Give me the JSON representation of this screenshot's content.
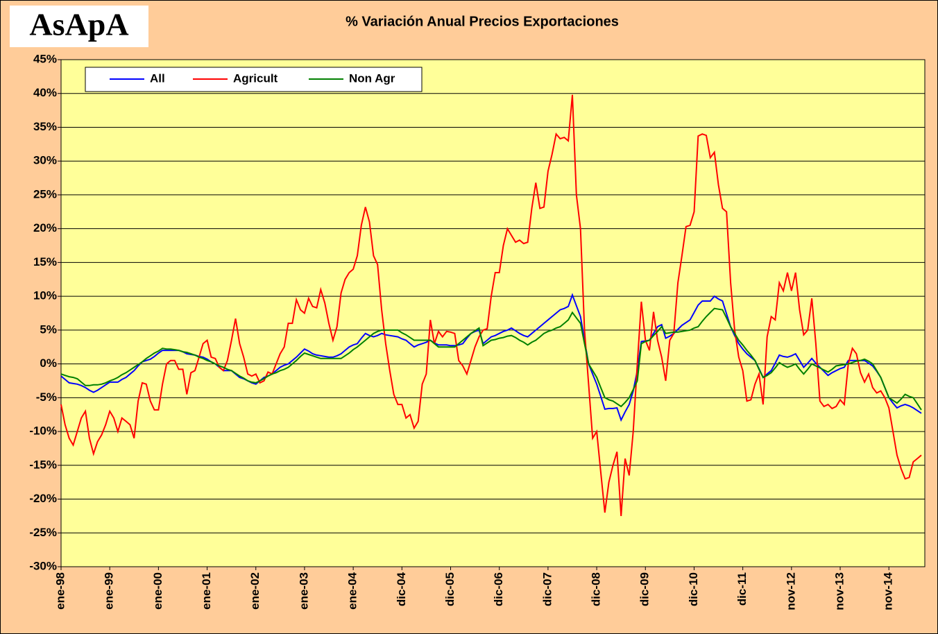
{
  "logo": "AsApA",
  "chart_data": {
    "type": "line",
    "title": "% Variación Anual Precios Exportaciones",
    "legend": "upper left",
    "grid": true,
    "ylim": [
      -30,
      45
    ],
    "yticks": [
      {
        "value": -30,
        "label": "-30%"
      },
      {
        "value": -25,
        "label": "-25%"
      },
      {
        "value": -20,
        "label": "-20%"
      },
      {
        "value": -15,
        "label": "-15%"
      },
      {
        "value": -10,
        "label": "-10%"
      },
      {
        "value": -5,
        "label": "-5%"
      },
      {
        "value": 0,
        "label": "0%"
      },
      {
        "value": 5,
        "label": "5%"
      },
      {
        "value": 10,
        "label": "10%"
      },
      {
        "value": 15,
        "label": "15%"
      },
      {
        "value": 20,
        "label": "20%"
      },
      {
        "value": 25,
        "label": "25%"
      },
      {
        "value": 30,
        "label": "30%"
      },
      {
        "value": 35,
        "label": "35%"
      },
      {
        "value": 40,
        "label": "40%"
      },
      {
        "value": 45,
        "label": "45%"
      }
    ],
    "categories": [
      "ene-98",
      null,
      null,
      null,
      null,
      null,
      null,
      null,
      null,
      null,
      null,
      null,
      "ene-99",
      null,
      null,
      null,
      null,
      null,
      null,
      null,
      null,
      null,
      null,
      null,
      "ene-00",
      null,
      null,
      null,
      null,
      null,
      null,
      null,
      null,
      null,
      null,
      null,
      "ene-01",
      null,
      null,
      null,
      null,
      null,
      null,
      null,
      null,
      null,
      null,
      null,
      "ene-02",
      null,
      null,
      null,
      null,
      null,
      null,
      null,
      null,
      null,
      null,
      null,
      "ene-03",
      null,
      null,
      null,
      null,
      null,
      null,
      null,
      null,
      null,
      null,
      null,
      "ene-04",
      null,
      null,
      null,
      null,
      null,
      null,
      null,
      null,
      null,
      null,
      null,
      "dic-04",
      null,
      null,
      null,
      null,
      null,
      null,
      null,
      null,
      null,
      null,
      null,
      "dic-05",
      null,
      null,
      null,
      null,
      null,
      null,
      null,
      null,
      null,
      null,
      null,
      "dic-06",
      null,
      null,
      null,
      null,
      null,
      null,
      null,
      null,
      null,
      null,
      null,
      "dic-07",
      null,
      null,
      null,
      null,
      null,
      null,
      null,
      null,
      null,
      null,
      null,
      "dic-08",
      null,
      null,
      null,
      null,
      null,
      null,
      null,
      null,
      null,
      null,
      null,
      "dic-09",
      null,
      null,
      null,
      null,
      null,
      null,
      null,
      null,
      null,
      null,
      null,
      "dic-10",
      null,
      null,
      null,
      null,
      null,
      null,
      null,
      null,
      null,
      null,
      null,
      "dic-11",
      null,
      null,
      null,
      null,
      null,
      null,
      null,
      null,
      null,
      null,
      null,
      "nov-12",
      null,
      null,
      null,
      null,
      null,
      null,
      null,
      null,
      null,
      null,
      null,
      "nov-13",
      null,
      null,
      null,
      null,
      null,
      null,
      null,
      null,
      null,
      null,
      null,
      "nov-14",
      null,
      null,
      null,
      null,
      null,
      null,
      null,
      null
    ],
    "series": [
      {
        "name": "All",
        "color": "#0000ff",
        "values": [
          -1.8,
          -2.3,
          -2.8,
          -2.9,
          -3,
          -3.2,
          -3.5,
          -3.9,
          -4.2,
          -3.9,
          -3.5,
          -3.1,
          -2.7,
          -2.7,
          -2.7,
          -2.3,
          -2,
          -1.5,
          -1,
          -0.3,
          0.3,
          0.5,
          0.7,
          1.1,
          1.6,
          2,
          2,
          2,
          2,
          2,
          1.8,
          1.5,
          1.4,
          1.3,
          1.1,
          1,
          0.7,
          0.3,
          0,
          -0.5,
          -1,
          -1,
          -1,
          -1.5,
          -2,
          -2.2,
          -2.5,
          -2.8,
          -3,
          -2.5,
          -2,
          -1.8,
          -1.5,
          -1,
          -0.5,
          -0.2,
          0,
          0.5,
          1,
          1.6,
          2.2,
          1.9,
          1.5,
          1.3,
          1.2,
          1.1,
          1,
          1,
          1.2,
          1.5,
          2,
          2.5,
          2.8,
          3,
          3.8,
          4.5,
          4.2,
          4,
          4.2,
          4.5,
          4.3,
          4.2,
          4.1,
          4,
          3.7,
          3.5,
          3,
          2.5,
          2.8,
          3,
          3.2,
          3.5,
          3.1,
          2.8,
          2.8,
          2.8,
          2.7,
          2.7,
          2.8,
          3,
          3.8,
          4.5,
          4.8,
          5,
          3,
          3.5,
          4,
          4.2,
          4.5,
          4.8,
          5,
          5.3,
          4.9,
          4.5,
          4.2,
          4,
          4.5,
          5,
          5.5,
          6,
          6.5,
          7,
          7.5,
          8,
          8.2,
          8.5,
          10.2,
          8.6,
          7,
          3.5,
          0,
          -1.5,
          -3,
          -4.8,
          -6.7,
          -6.6,
          -6.6,
          -6.5,
          -8.3,
          -7.1,
          -6,
          -4,
          -1,
          3.3,
          3.4,
          3.5,
          4.5,
          5.5,
          5.8,
          3.8,
          4.1,
          4.5,
          5.1,
          5.7,
          6.1,
          6.5,
          7.6,
          8.7,
          9.3,
          9.3,
          9.3,
          10,
          9.6,
          9.3,
          7.4,
          5.5,
          4.2,
          3,
          2.2,
          1.5,
          1,
          0.5,
          -0.7,
          -2,
          -1.5,
          -1,
          0.1,
          1.3,
          1.1,
          1,
          1.2,
          1.5,
          0.5,
          -0.5,
          0.1,
          0.8,
          0.1,
          -0.5,
          -1.1,
          -1.7,
          -1.3,
          -1,
          -0.7,
          -0.5,
          0.5,
          0.5,
          0.5,
          0.5,
          0.5,
          0.1,
          -0.3,
          -1.1,
          -2,
          -3.5,
          -5,
          -5.8,
          -6.5,
          -6.2,
          -6,
          -6.2,
          -6.5,
          -6.9,
          -7.3
        ]
      },
      {
        "name": "Agricult",
        "color": "#ff0000",
        "values": [
          -6,
          -9,
          -11,
          -12,
          -10,
          -8,
          -7,
          -11,
          -13.3,
          -11.5,
          -10.5,
          -9,
          -7,
          -8,
          -10,
          -8,
          -8.5,
          -9,
          -11,
          -5.5,
          -2.8,
          -3,
          -5.5,
          -6.8,
          -6.8,
          -3,
          0,
          0.5,
          0.5,
          -0.8,
          -0.8,
          -4.5,
          -1.3,
          -1,
          1,
          3,
          3.5,
          1,
          0.8,
          -0.5,
          -1,
          0.5,
          3.5,
          6.7,
          3,
          1,
          -1.5,
          -1.8,
          -1.5,
          -2.8,
          -2.5,
          -1.2,
          -1.5,
          0,
          1.5,
          2.5,
          6,
          6,
          9.5,
          8,
          7.5,
          9.7,
          8.5,
          8.3,
          11,
          9,
          6,
          3.5,
          5.5,
          10.5,
          12.5,
          13.5,
          14,
          16,
          20.5,
          23.2,
          21,
          16,
          14.7,
          8,
          3,
          -1,
          -4.5,
          -6,
          -6,
          -8,
          -7.5,
          -9.5,
          -8.5,
          -3,
          -1.5,
          6.5,
          3,
          4.8,
          4,
          4.8,
          4.7,
          4.5,
          0.5,
          -0.3,
          -1.5,
          0.5,
          2.5,
          4,
          5,
          5.2,
          10,
          13.5,
          13.5,
          17.5,
          20,
          19,
          18,
          18.3,
          17.8,
          18,
          23,
          26.8,
          23,
          23.2,
          28.5,
          31,
          34,
          33.3,
          33.5,
          33,
          39.8,
          25,
          20,
          5,
          -3,
          -11,
          -10,
          -16,
          -22,
          -17.5,
          -15,
          -13,
          -22.5,
          -14,
          -16.5,
          -10,
          0,
          9.2,
          3.5,
          2,
          7.7,
          3.5,
          1,
          -2.5,
          3.5,
          4.5,
          12,
          16,
          20.3,
          20.5,
          22.5,
          33.7,
          34,
          33.8,
          30.5,
          31.3,
          26.5,
          23,
          22.5,
          12,
          5,
          1,
          -1,
          -5.5,
          -5.3,
          -3,
          -1.5,
          -6,
          4,
          7,
          6.5,
          12,
          10.8,
          13.5,
          10.8,
          13.5,
          8,
          4.3,
          5,
          9.7,
          3,
          -5.5,
          -6.3,
          -6,
          -6.6,
          -6.3,
          -5.3,
          -6,
          0,
          2.3,
          1.5,
          -1.3,
          -2.7,
          -1.5,
          -3.5,
          -4.3,
          -4,
          -5,
          -6.5,
          -10,
          -13.5,
          -15.5,
          -17,
          -16.8,
          -14.5,
          -14,
          -13.5
        ]
      },
      {
        "name": "Non Agr",
        "color": "#008000",
        "values": [
          -1.5,
          -1.7,
          -1.9,
          -2,
          -2.2,
          -2.7,
          -3.2,
          -3.2,
          -3.1,
          -3.1,
          -3,
          -2.8,
          -2.5,
          -2.3,
          -2,
          -1.6,
          -1.3,
          -0.9,
          -0.5,
          -0.1,
          0.3,
          0.8,
          1.2,
          1.6,
          1.9,
          2.3,
          2.2,
          2.2,
          2.1,
          2,
          1.8,
          1.7,
          1.5,
          1.3,
          1,
          0.8,
          0.5,
          0.3,
          0,
          -0.3,
          -0.5,
          -0.8,
          -1,
          -1.4,
          -1.8,
          -2.1,
          -2.5,
          -2.7,
          -2.8,
          -2.5,
          -2.2,
          -1.8,
          -1.5,
          -1.3,
          -1,
          -0.8,
          -0.5,
          0,
          0.5,
          1.1,
          1.6,
          1.4,
          1.2,
          1,
          0.8,
          0.8,
          0.8,
          0.8,
          0.8,
          0.8,
          1.2,
          1.6,
          2.1,
          2.5,
          3,
          3.5,
          4,
          4.5,
          4.8,
          5,
          5,
          5,
          5,
          5,
          4.6,
          4.3,
          3.9,
          3.5,
          3.5,
          3.5,
          3.5,
          3.5,
          3,
          2.5,
          2.5,
          2.5,
          2.5,
          2.5,
          3,
          3.5,
          4,
          4.5,
          4.9,
          5.3,
          2.7,
          3.1,
          3.5,
          3.6,
          3.8,
          3.9,
          4.1,
          4.2,
          3.9,
          3.5,
          3.2,
          2.8,
          3.2,
          3.5,
          4,
          4.5,
          4.8,
          5,
          5.3,
          5.5,
          6,
          6.5,
          7.6,
          6.8,
          6,
          3,
          0,
          -1,
          -2,
          -3.5,
          -5,
          -5.3,
          -5.5,
          -5.9,
          -6.3,
          -5.7,
          -5,
          -3.8,
          -2.5,
          3,
          3.3,
          3.5,
          4.2,
          4.8,
          5.5,
          4.5,
          4.6,
          4.7,
          4.7,
          4.8,
          4.9,
          5,
          5.3,
          5.5,
          6.3,
          7,
          7.6,
          8.2,
          8.1,
          8,
          6.8,
          5.5,
          4.5,
          3.5,
          2.8,
          2,
          1.3,
          0.5,
          -0.8,
          -2,
          -1.7,
          -1.3,
          -0.6,
          0.2,
          -0.2,
          -0.5,
          -0.3,
          0,
          -0.8,
          -1.5,
          -0.8,
          0,
          -0.3,
          -0.6,
          -0.9,
          -1.2,
          -0.8,
          -0.3,
          -0.2,
          -0.1,
          0,
          0.2,
          0.4,
          0.5,
          0.7,
          0.4,
          0,
          -1,
          -2,
          -3.5,
          -5,
          -5.4,
          -5.8,
          -5.2,
          -4.5,
          -4.8,
          -5,
          -5.9,
          -6.8
        ]
      }
    ]
  }
}
